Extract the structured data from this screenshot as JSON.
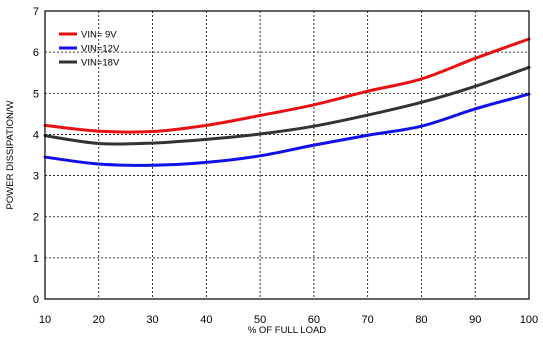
{
  "chart_data": {
    "type": "line",
    "xlabel": "% OF FULL LOAD",
    "ylabel": "POWER DISSIPATION/W",
    "xlim": [
      10,
      100
    ],
    "ylim": [
      0,
      7
    ],
    "x_ticks": [
      10,
      20,
      30,
      40,
      50,
      60,
      70,
      80,
      90,
      100
    ],
    "y_ticks": [
      0,
      1,
      2,
      3,
      4,
      5,
      6,
      7
    ],
    "grid": true,
    "legend_position": "top-left",
    "series": [
      {
        "name": "VIN= 9V",
        "color": "#e81010",
        "x": [
          10,
          20,
          30,
          40,
          50,
          60,
          70,
          80,
          90,
          100
        ],
        "y": [
          4.22,
          4.08,
          4.07,
          4.22,
          4.46,
          4.72,
          5.05,
          5.35,
          5.85,
          6.32
        ]
      },
      {
        "name": "VIN=12V",
        "color": "#1010e8",
        "x": [
          10,
          20,
          30,
          40,
          50,
          60,
          70,
          80,
          90,
          100
        ],
        "y": [
          3.45,
          3.28,
          3.25,
          3.32,
          3.48,
          3.74,
          3.98,
          4.2,
          4.62,
          4.98
        ]
      },
      {
        "name": "VIN=18V",
        "color": "#333333",
        "x": [
          10,
          20,
          30,
          40,
          50,
          60,
          70,
          80,
          90,
          100
        ],
        "y": [
          3.97,
          3.78,
          3.79,
          3.88,
          4.01,
          4.2,
          4.47,
          4.78,
          5.17,
          5.63
        ]
      }
    ]
  }
}
